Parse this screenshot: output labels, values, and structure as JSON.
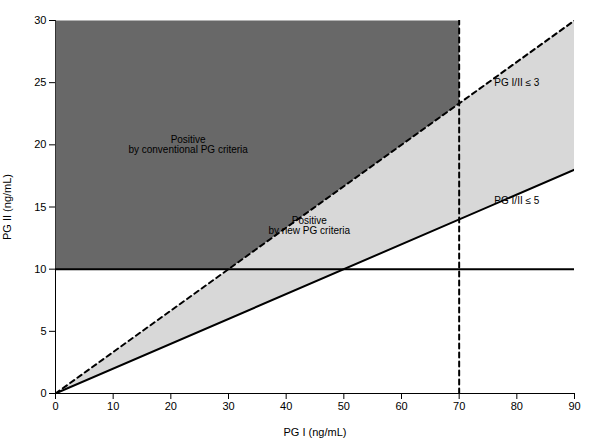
{
  "chart_data": {
    "type": "region",
    "xlabel": "PG I (ng/mL)",
    "ylabel": "PG II (ng/mL)",
    "xlim": [
      0,
      90
    ],
    "ylim": [
      0,
      30
    ],
    "xticks": [
      0,
      10,
      20,
      30,
      40,
      50,
      60,
      70,
      80,
      90
    ],
    "yticks": [
      0,
      5,
      10,
      15,
      20,
      25,
      30
    ],
    "areas": [
      {
        "color": "#d8d8d8",
        "x": [
          0,
          90,
          90,
          0
        ],
        "y": [
          0,
          18.0,
          29.9997,
          0
        ]
      },
      {
        "color": "#686868",
        "x": [
          0,
          70,
          70,
          30,
          0
        ],
        "y": [
          30,
          30,
          23.3331,
          10,
          10
        ]
      }
    ],
    "series": [
      {
        "color": "#000000",
        "line_style": "solid",
        "x": [
          0,
          90
        ],
        "y": [
          10,
          10
        ]
      },
      {
        "color": "#000000",
        "line_style": "dashed",
        "x": [
          70,
          70
        ],
        "y": [
          0,
          30
        ]
      },
      {
        "color": "#000000",
        "line_style": "dashed",
        "x": [
          0,
          90
        ],
        "y": [
          0,
          29.9997
        ]
      },
      {
        "color": "#000000",
        "line_style": "solid",
        "x": [
          0,
          90
        ],
        "y": [
          0,
          18.0
        ]
      }
    ],
    "annotations": [
      {
        "text": "Positive\nby conventional PG criteria",
        "x": 23,
        "y": 20
      },
      {
        "text": "Positive\nby new PG criteria",
        "x": 44,
        "y": 13.5
      },
      {
        "text": "PG I/II ≤ 3",
        "x": 80,
        "y": 25
      },
      {
        "text": "PG I/II ≤ 5",
        "x": 80,
        "y": 15.5
      }
    ]
  }
}
